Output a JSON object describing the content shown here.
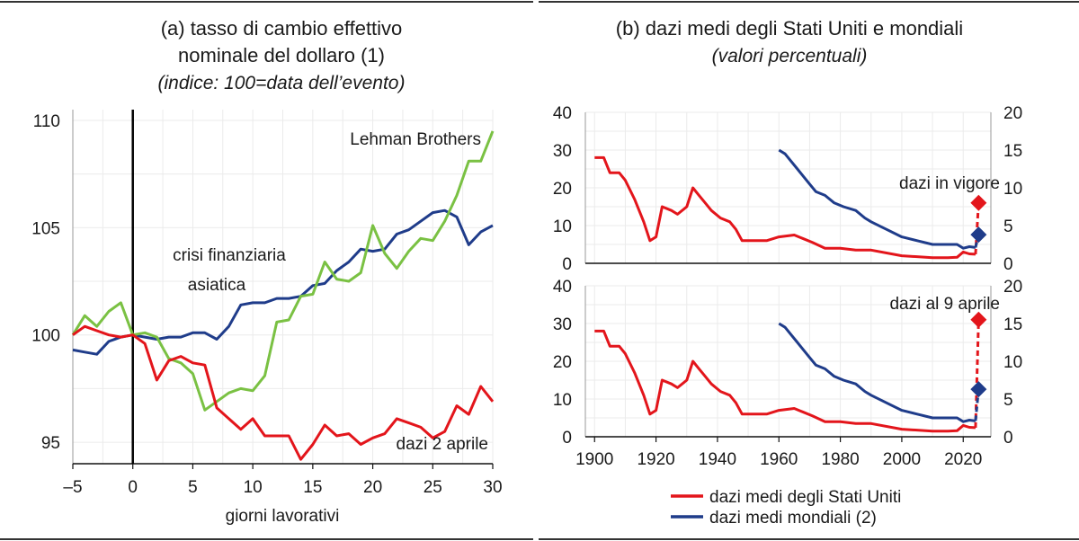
{
  "panel_a": {
    "title_line1": "(a) tasso di cambio effettivo",
    "title_line2": "nominale del dollaro (1)",
    "subtitle": "(indice: 100=data dell’evento)"
  },
  "panel_b": {
    "title": "(b) dazi medi degli Stati Uniti e mondiali",
    "subtitle": "(valori percentuali)"
  },
  "colors": {
    "red": "#e3151b",
    "blue": "#1f3c8a",
    "green": "#7ac143",
    "grid": "#ebebeb",
    "axis": "#111111"
  },
  "chart_data": [
    {
      "type": "line",
      "title": "(a) tasso di cambio effettivo nominale del dollaro (1)",
      "subtitle": "(indice: 100=data dell’evento)",
      "xlabel": "giorni lavorativi",
      "ylabel": "",
      "xlim": [
        -5,
        30
      ],
      "ylim": [
        94,
        110.5
      ],
      "xticks": [
        -5,
        0,
        5,
        10,
        15,
        20,
        25,
        30
      ],
      "xtick_labels": [
        "–5",
        "0",
        "5",
        "10",
        "15",
        "20",
        "25",
        "30"
      ],
      "yticks": [
        95,
        100,
        105,
        110
      ],
      "grid": true,
      "event_line_x": 0,
      "x": [
        -5,
        -4,
        -3,
        -2,
        -1,
        0,
        1,
        2,
        3,
        4,
        5,
        6,
        7,
        8,
        9,
        10,
        11,
        12,
        13,
        14,
        15,
        16,
        17,
        18,
        19,
        20,
        21,
        22,
        23,
        24,
        25,
        26,
        27,
        28,
        29,
        30
      ],
      "series": [
        {
          "name": "dazi 2 aprile",
          "color": "red",
          "values": [
            100.0,
            100.4,
            100.2,
            100.0,
            99.9,
            100.0,
            99.6,
            97.9,
            98.8,
            99.0,
            98.7,
            98.6,
            96.6,
            96.1,
            95.6,
            96.1,
            95.3,
            95.3,
            95.3,
            94.2,
            94.9,
            95.8,
            95.3,
            95.4,
            94.9,
            95.2,
            95.4,
            96.1,
            95.9,
            95.7,
            95.2,
            95.5,
            96.7,
            96.3,
            97.6,
            96.9
          ]
        },
        {
          "name": "crisi finanziaria asiatica",
          "color": "blue",
          "values": [
            99.3,
            99.2,
            99.1,
            99.7,
            99.9,
            100.0,
            99.9,
            99.8,
            99.9,
            99.9,
            100.1,
            100.1,
            99.8,
            100.4,
            101.4,
            101.5,
            101.5,
            101.7,
            101.7,
            101.8,
            102.3,
            102.4,
            103.0,
            103.4,
            104.0,
            103.9,
            104.0,
            104.7,
            104.9,
            105.3,
            105.7,
            105.8,
            105.5,
            104.2,
            104.8,
            105.1
          ]
        },
        {
          "name": "Lehman Brothers",
          "color": "green",
          "values": [
            100.0,
            100.9,
            100.4,
            101.1,
            101.5,
            100.0,
            100.1,
            99.9,
            98.9,
            98.7,
            98.2,
            96.5,
            96.9,
            97.3,
            97.5,
            97.4,
            98.1,
            100.6,
            100.7,
            101.8,
            101.9,
            103.4,
            102.6,
            102.5,
            102.9,
            105.1,
            103.8,
            103.1,
            103.9,
            104.5,
            104.4,
            105.3,
            106.5,
            108.1,
            108.1,
            109.5
          ]
        }
      ],
      "annotations": [
        "crisi finanziaria",
        "asiatica",
        "Lehman Brothers",
        "dazi 2 aprile"
      ]
    },
    {
      "type": "line",
      "title": "dazi in vigore",
      "xlim": [
        1897,
        2029
      ],
      "ylim_left": [
        0,
        40
      ],
      "ylim_right": [
        0,
        20
      ],
      "yticks_left": [
        0,
        10,
        20,
        30,
        40
      ],
      "yticks_right": [
        0,
        5,
        10,
        15,
        20
      ],
      "grid": true,
      "series": [
        {
          "name": "dazi medi degli Stati Uniti",
          "color": "red",
          "axis": "left",
          "x": [
            1900,
            1903,
            1905,
            1908,
            1910,
            1913,
            1916,
            1918,
            1920,
            1922,
            1925,
            1927,
            1930,
            1932,
            1934,
            1936,
            1938,
            1941,
            1944,
            1946,
            1948,
            1950,
            1953,
            1956,
            1960,
            1965,
            1968,
            1971,
            1975,
            1980,
            1985,
            1990,
            2000,
            2010,
            2015,
            2018,
            2020,
            2022,
            2024
          ],
          "values": [
            28,
            28,
            24,
            24,
            22,
            17,
            11,
            6,
            7,
            15,
            14,
            13,
            15,
            20,
            18,
            16,
            14,
            12,
            11,
            9,
            6,
            6,
            6,
            6,
            7,
            7.5,
            6.5,
            5.5,
            4,
            4,
            3.5,
            3.5,
            2,
            1.5,
            1.5,
            1.6,
            3,
            2.5,
            2.4
          ]
        },
        {
          "name": "dazi medi mondiali",
          "color": "blue",
          "axis": "right",
          "x": [
            1960,
            1962,
            1964,
            1966,
            1968,
            1970,
            1972,
            1975,
            1978,
            1981,
            1985,
            1988,
            1990,
            1995,
            2000,
            2005,
            2010,
            2015,
            2018,
            2020,
            2022,
            2024
          ],
          "values": [
            15,
            14.5,
            13.5,
            12.5,
            11.5,
            10.5,
            9.5,
            9,
            8,
            7.5,
            7,
            6,
            5.5,
            4.5,
            3.5,
            3,
            2.5,
            2.5,
            2.5,
            2,
            2.2,
            2.1
          ]
        }
      ],
      "markers": [
        {
          "name": "dazi medi degli Stati Uniti",
          "year": 2025,
          "value": 16,
          "axis": "left",
          "color": "red"
        },
        {
          "name": "dazi medi mondiali",
          "year": 2025,
          "value": 3.8,
          "axis": "right",
          "color": "blue"
        }
      ]
    },
    {
      "type": "line",
      "title": "dazi al 9 aprile",
      "xlim": [
        1897,
        2029
      ],
      "ylim_left": [
        0,
        40
      ],
      "ylim_right": [
        0,
        20
      ],
      "yticks_left": [
        0,
        10,
        20,
        30,
        40
      ],
      "yticks_right": [
        0,
        5,
        10,
        15,
        20
      ],
      "xticks": [
        1900,
        1920,
        1940,
        1960,
        1980,
        2000,
        2020
      ],
      "grid": true,
      "series": [
        {
          "name": "dazi medi degli Stati Uniti",
          "color": "red",
          "axis": "left",
          "x": [
            1900,
            1903,
            1905,
            1908,
            1910,
            1913,
            1916,
            1918,
            1920,
            1922,
            1925,
            1927,
            1930,
            1932,
            1934,
            1936,
            1938,
            1941,
            1944,
            1946,
            1948,
            1950,
            1953,
            1956,
            1960,
            1965,
            1968,
            1971,
            1975,
            1980,
            1985,
            1990,
            2000,
            2010,
            2015,
            2018,
            2020,
            2022,
            2024
          ],
          "values": [
            28,
            28,
            24,
            24,
            22,
            17,
            11,
            6,
            7,
            15,
            14,
            13,
            15,
            20,
            18,
            16,
            14,
            12,
            11,
            9,
            6,
            6,
            6,
            6,
            7,
            7.5,
            6.5,
            5.5,
            4,
            4,
            3.5,
            3.5,
            2,
            1.5,
            1.5,
            1.6,
            3,
            2.5,
            2.4
          ]
        },
        {
          "name": "dazi medi mondiali",
          "color": "blue",
          "axis": "right",
          "x": [
            1960,
            1962,
            1964,
            1966,
            1968,
            1970,
            1972,
            1975,
            1978,
            1981,
            1985,
            1988,
            1990,
            1995,
            2000,
            2005,
            2010,
            2015,
            2018,
            2020,
            2022,
            2024
          ],
          "values": [
            15,
            14.5,
            13.5,
            12.5,
            11.5,
            10.5,
            9.5,
            9,
            8,
            7.5,
            7,
            6,
            5.5,
            4.5,
            3.5,
            3,
            2.5,
            2.5,
            2.5,
            2,
            2.2,
            2.1
          ]
        }
      ],
      "markers": [
        {
          "name": "dazi medi degli Stati Uniti",
          "year": 2025,
          "value": 31,
          "axis": "left",
          "color": "red"
        },
        {
          "name": "dazi medi mondiali",
          "year": 2025,
          "value": 6.3,
          "axis": "right",
          "color": "blue"
        }
      ]
    }
  ],
  "legend": [
    {
      "label": "dazi medi degli Stati Uniti",
      "color": "red"
    },
    {
      "label": "dazi medi mondiali (2)",
      "color": "blue"
    }
  ]
}
